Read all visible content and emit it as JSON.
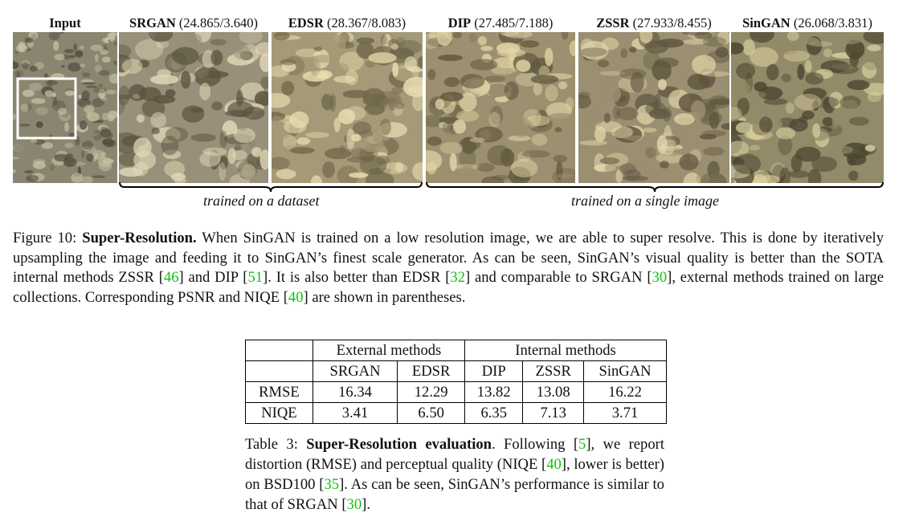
{
  "panels": [
    {
      "method": "Input",
      "metrics": "",
      "tone": "#8a8570",
      "dark": "#4e4a3c",
      "light": "#c9c2a4"
    },
    {
      "method": "SRGAN",
      "metrics": "(24.865/3.640)",
      "tone": "#98907a",
      "dark": "#5a533f",
      "light": "#e2d8b8"
    },
    {
      "method": "EDSR",
      "metrics": "(28.367/8.083)",
      "tone": "#a49a78",
      "dark": "#6e6549",
      "light": "#e9ddb0"
    },
    {
      "method": "DIP",
      "metrics": "(27.485/7.188)",
      "tone": "#9c9070",
      "dark": "#625a40",
      "light": "#e3d6a8"
    },
    {
      "method": "ZSSR",
      "metrics": "(27.933/8.455)",
      "tone": "#9a8f70",
      "dark": "#5f5640",
      "light": "#e4d6aa"
    },
    {
      "method": "SinGAN",
      "metrics": "(26.068/3.831)",
      "tone": "#928a68",
      "dark": "#4a4430",
      "light": "#dcd2a2"
    }
  ],
  "groups": {
    "dataset": "trained on a dataset",
    "single": "trained on a single image"
  },
  "figure_caption": {
    "prefix": "Figure 10: ",
    "title": "Super-Resolution.",
    "t1": " When SinGAN is trained on a low resolution image, we are able to super resolve. This is done by iteratively upsampling the image and feeding it to SinGAN’s finest scale generator. As can be seen, SinGAN’s visual quality is better than the SOTA internal methods ZSSR [",
    "c1": "46",
    "t2": "] and DIP [",
    "c2": "51",
    "t3": "]. It is also better than EDSR [",
    "c3": "32",
    "t4": "] and comparable to SRGAN [",
    "c4": "30",
    "t5": "], external methods trained on large collections. Corresponding PSNR and NIQE [",
    "c5": "40",
    "t6": "] are shown in parentheses."
  },
  "table": {
    "group_external": "External methods",
    "group_internal": "Internal methods",
    "columns": [
      "SRGAN",
      "EDSR",
      "DIP",
      "ZSSR",
      "SinGAN"
    ],
    "rows": [
      {
        "metric": "RMSE",
        "values": [
          "16.34",
          "12.29",
          "13.82",
          "13.08",
          "16.22"
        ]
      },
      {
        "metric": "NIQE",
        "values": [
          "3.41",
          "6.50",
          "6.35",
          "7.13",
          "3.71"
        ]
      }
    ]
  },
  "table_caption": {
    "prefix": "Table 3: ",
    "title": "Super-Resolution evaluation",
    "t1": ". Following [",
    "c1": "5",
    "t2": "], we report distortion (RMSE) and perceptual quality (NIQE [",
    "c2": "40",
    "t3": "], lower is better) on BSD100 [",
    "c3": "35",
    "t4": "]. As can be seen, SinGAN’s performance is similar to that of SRGAN [",
    "c4": "30",
    "t5": "]."
  }
}
